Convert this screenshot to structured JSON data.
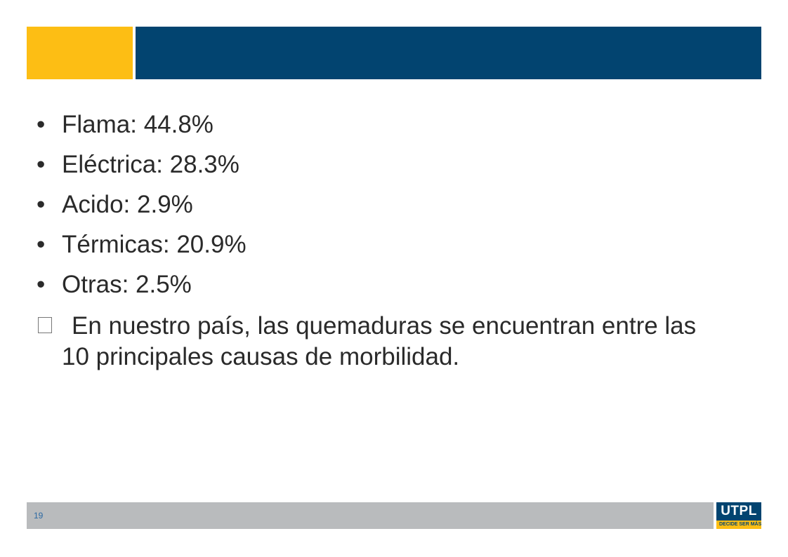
{
  "header": {
    "accent_color": "#FDBE14",
    "brand_color": "#024470"
  },
  "bullets": [
    {
      "text": "Flama: 44.8%"
    },
    {
      "text": "Eléctrica: 28.3%"
    },
    {
      "text": "Acido: 2.9%"
    },
    {
      "text": "Térmicas: 20.9%"
    },
    {
      "text": "Otras: 2.5%"
    }
  ],
  "bullet_symbol": "•",
  "note": {
    "text": "En nuestro país, las quemaduras se encuentran entre las 10 principales causas de morbilidad."
  },
  "footer": {
    "page_number": "19",
    "bar_color": "#B9BBBD"
  },
  "logo": {
    "name": "UTPL",
    "tagline": "DECIDE SER MÁS"
  }
}
